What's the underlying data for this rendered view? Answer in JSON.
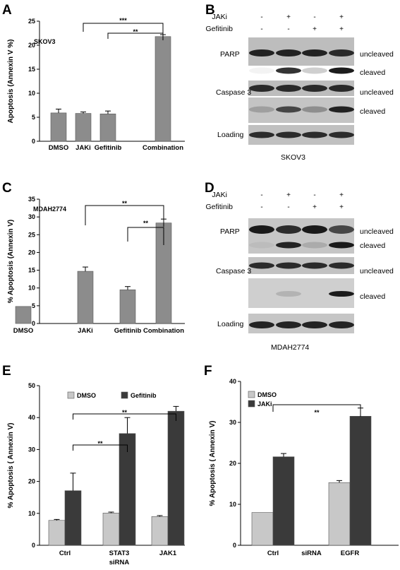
{
  "panels": {
    "A": {
      "label": "A"
    },
    "B": {
      "label": "B"
    },
    "C": {
      "label": "C"
    },
    "D": {
      "label": "D"
    },
    "E": {
      "label": "E"
    },
    "F": {
      "label": "F"
    }
  },
  "chart_data": [
    {
      "id": "A",
      "type": "bar",
      "inset_label": "SKOV3",
      "ylabel": "Apoptosis (Annexin V %)",
      "ylim": [
        0,
        25
      ],
      "yticks": [
        0,
        5,
        10,
        15,
        20,
        25
      ],
      "categories": [
        "DMSO",
        "JAKi",
        "Gefitinib",
        "Combination"
      ],
      "values": [
        5.9,
        5.8,
        5.7,
        21.8
      ],
      "errors": [
        0.8,
        0.3,
        0.6,
        0.4
      ],
      "colors": [
        "#8c8c8c"
      ],
      "significance": [
        {
          "from": "JAKi",
          "to": "Combination",
          "label": "***"
        },
        {
          "from": "Gefitinib",
          "to": "Combination",
          "label": "**"
        }
      ]
    },
    {
      "id": "C",
      "type": "bar",
      "inset_label": "MDAH2774",
      "ylabel": "% Apoptosis (Annexin V)",
      "ylim": [
        0,
        35
      ],
      "yticks": [
        0,
        5,
        10,
        15,
        20,
        25,
        30,
        35
      ],
      "categories": [
        "DMSO",
        "JAKi",
        "Gefitinib",
        "Combination"
      ],
      "values": [
        4.8,
        14.7,
        9.5,
        28.3
      ],
      "errors": [
        0,
        1.2,
        0.9,
        1.1
      ],
      "colors": [
        "#8c8c8c"
      ],
      "significance": [
        {
          "from": "JAKi",
          "to": "Combination",
          "label": "**"
        },
        {
          "from": "Gefitinib",
          "to": "Combination",
          "label": "**"
        }
      ]
    },
    {
      "id": "E",
      "type": "bar",
      "ylabel": "% Apoptosis ( Annexin V)",
      "ylim": [
        0,
        50
      ],
      "yticks": [
        0,
        10,
        20,
        30,
        40,
        50
      ],
      "categories": [
        "Ctrl",
        "STAT3",
        "JAK1"
      ],
      "group_sublabel": "siRNA",
      "series": [
        {
          "name": "DMSO",
          "color": "#c8c8c8",
          "values": [
            7.8,
            10.1,
            9.0
          ],
          "errors": [
            0.3,
            0.3,
            0.3
          ]
        },
        {
          "name": "Gefitinib",
          "color": "#3a3a3a",
          "values": [
            17.1,
            35.0,
            42.0
          ],
          "errors": [
            5.5,
            5.0,
            1.5
          ]
        }
      ],
      "legend": "top",
      "significance": [
        {
          "from": "Ctrl",
          "to": "STAT3",
          "label": "**"
        },
        {
          "from": "Ctrl",
          "to": "JAK1",
          "label": "**"
        }
      ]
    },
    {
      "id": "F",
      "type": "bar",
      "ylabel": "% Apoptosis ( Annexin V)",
      "ylim": [
        0,
        40
      ],
      "yticks": [
        0,
        10,
        20,
        30,
        40
      ],
      "categories": [
        "Ctrl",
        "EGFR"
      ],
      "group_sublabel": "siRNA",
      "series": [
        {
          "name": "DMSO",
          "color": "#c8c8c8",
          "values": [
            8.0,
            15.3
          ],
          "errors": [
            0,
            0.5
          ]
        },
        {
          "name": "JAKi",
          "color": "#3a3a3a",
          "values": [
            21.6,
            31.5
          ],
          "errors": [
            0.8,
            2.0
          ]
        }
      ],
      "legend": "top-left",
      "significance": [
        {
          "from": "Ctrl",
          "to": "EGFR",
          "label": "**"
        }
      ]
    }
  ],
  "blots": {
    "B": {
      "treatment_rows": [
        {
          "label": "JAKi",
          "signs": [
            "-",
            "+",
            "-",
            "+"
          ]
        },
        {
          "label": "Gefitinib",
          "signs": [
            "-",
            "-",
            "+",
            "+"
          ]
        }
      ],
      "left_labels": [
        "PARP",
        "Caspase 3",
        "Loading"
      ],
      "right_labels": [
        "uncleaved",
        "cleaved",
        "uncleaved",
        "cleaved"
      ],
      "cell_line": "SKOV3"
    },
    "D": {
      "treatment_rows": [
        {
          "label": "JAKi",
          "signs": [
            "-",
            "+",
            "-",
            "+"
          ]
        },
        {
          "label": "Gefitinib",
          "signs": [
            "-",
            "-",
            "+",
            "+"
          ]
        }
      ],
      "left_labels": [
        "PARP",
        "Caspase 3",
        "Loading"
      ],
      "right_labels": [
        "uncleaved",
        "cleaved",
        "uncleaved",
        "cleaved"
      ],
      "cell_line": "MDAH2774"
    }
  }
}
